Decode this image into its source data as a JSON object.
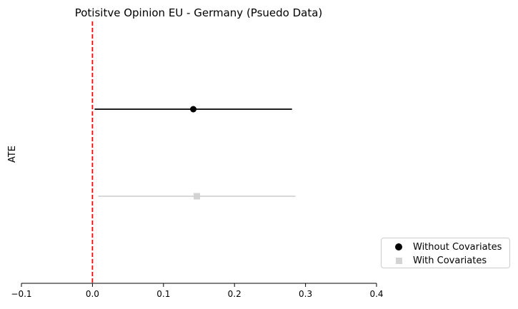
{
  "chart_data": {
    "type": "scatter",
    "title": "Potisitve Opinion EU - Germany (Psuedo Data)",
    "xlabel": "",
    "ylabel": "ATE",
    "xlim": [
      -0.1,
      0.4
    ],
    "x_ticks": [
      "−0.1",
      "0.0",
      "0.1",
      "0.2",
      "0.3",
      "0.4"
    ],
    "x_tick_values": [
      -0.1,
      0.0,
      0.1,
      0.2,
      0.3,
      0.4
    ],
    "reference_line": {
      "x": 0.0,
      "color": "#ff0000",
      "style": "dashed"
    },
    "series": [
      {
        "name": "Without Covariates",
        "estimate": 0.142,
        "ci": [
          0.003,
          0.281
        ],
        "marker": "circle",
        "color": "#000000"
      },
      {
        "name": "With Covariates",
        "estimate": 0.147,
        "ci": [
          0.008,
          0.286
        ],
        "marker": "square",
        "color": "#d3d3d3"
      }
    ],
    "legend": {
      "position": "outside-lower-right"
    },
    "grid": false
  }
}
